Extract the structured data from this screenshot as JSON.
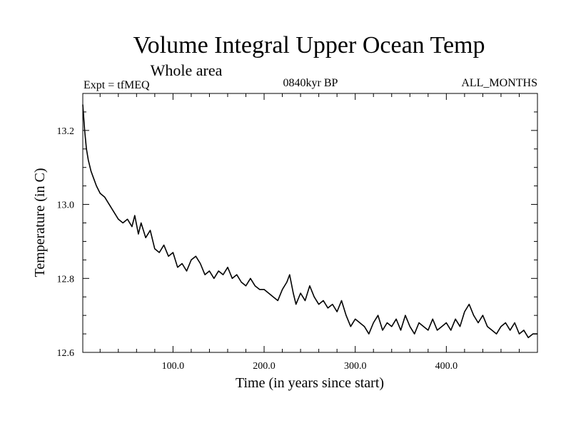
{
  "chart_data": {
    "type": "line",
    "title": "Volume Integral Upper Ocean Temp",
    "subtitle": "Whole area",
    "experiment": "Expt = tfMEQ",
    "period": "0840kyr BP",
    "months": "ALL_MONTHS",
    "xlabel": "Time (in years since start)",
    "ylabel": "Temperature (in C)",
    "xlim": [
      1,
      500
    ],
    "ylim": [
      12.6,
      13.3
    ],
    "x_ticks": [
      100,
      200,
      300,
      400
    ],
    "x_tick_labels": [
      "100.0",
      "200.0",
      "300.0",
      "400.0"
    ],
    "y_ticks": [
      12.6,
      12.8,
      13.0,
      13.2
    ],
    "y_tick_labels": [
      "12.6",
      "12.8",
      "13.0",
      "13.2"
    ],
    "series": [
      {
        "name": "Temperature",
        "x": [
          1,
          3,
          5,
          7,
          10,
          13,
          16,
          20,
          25,
          30,
          35,
          40,
          45,
          50,
          55,
          58,
          62,
          65,
          70,
          75,
          80,
          85,
          90,
          95,
          100,
          105,
          110,
          115,
          120,
          125,
          130,
          135,
          140,
          145,
          150,
          155,
          160,
          165,
          170,
          175,
          180,
          185,
          190,
          195,
          200,
          205,
          210,
          215,
          220,
          225,
          228,
          232,
          235,
          240,
          245,
          250,
          255,
          260,
          265,
          270,
          275,
          280,
          285,
          290,
          295,
          300,
          305,
          310,
          315,
          320,
          325,
          330,
          335,
          340,
          345,
          350,
          355,
          360,
          365,
          370,
          375,
          380,
          385,
          390,
          395,
          400,
          405,
          410,
          415,
          420,
          425,
          430,
          435,
          440,
          445,
          450,
          455,
          460,
          465,
          470,
          475,
          480,
          485,
          490,
          495,
          500
        ],
        "y": [
          13.27,
          13.2,
          13.15,
          13.12,
          13.09,
          13.07,
          13.05,
          13.03,
          13.02,
          13.0,
          12.98,
          12.96,
          12.95,
          12.96,
          12.94,
          12.97,
          12.92,
          12.95,
          12.91,
          12.93,
          12.88,
          12.87,
          12.89,
          12.86,
          12.87,
          12.83,
          12.84,
          12.82,
          12.85,
          12.86,
          12.84,
          12.81,
          12.82,
          12.8,
          12.82,
          12.81,
          12.83,
          12.8,
          12.81,
          12.79,
          12.78,
          12.8,
          12.78,
          12.77,
          12.77,
          12.76,
          12.75,
          12.74,
          12.77,
          12.79,
          12.81,
          12.76,
          12.73,
          12.76,
          12.74,
          12.78,
          12.75,
          12.73,
          12.74,
          12.72,
          12.73,
          12.71,
          12.74,
          12.7,
          12.67,
          12.69,
          12.68,
          12.67,
          12.65,
          12.68,
          12.7,
          12.66,
          12.68,
          12.67,
          12.69,
          12.66,
          12.7,
          12.67,
          12.65,
          12.68,
          12.67,
          12.66,
          12.69,
          12.66,
          12.67,
          12.68,
          12.66,
          12.69,
          12.67,
          12.71,
          12.73,
          12.7,
          12.68,
          12.7,
          12.67,
          12.66,
          12.65,
          12.67,
          12.68,
          12.66,
          12.68,
          12.65,
          12.66,
          12.64,
          12.65,
          12.65
        ],
        "color": "#000000"
      }
    ]
  }
}
